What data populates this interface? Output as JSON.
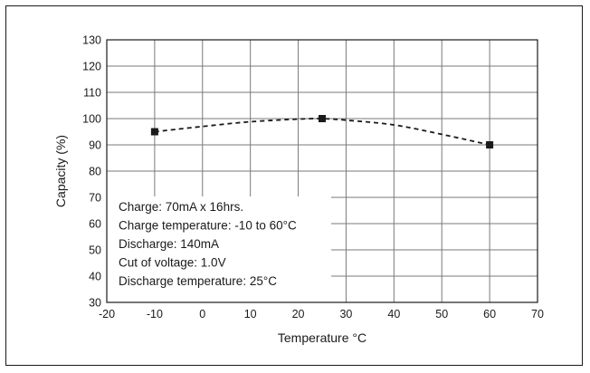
{
  "chart_data": {
    "type": "line",
    "title": "",
    "xlabel": "Temperature °C",
    "ylabel": "Capacity (%)",
    "xlim": [
      -20,
      70
    ],
    "ylim": [
      30,
      130
    ],
    "x_ticks": [
      -20,
      -10,
      0,
      10,
      20,
      30,
      40,
      50,
      60,
      70
    ],
    "y_ticks": [
      30,
      40,
      50,
      60,
      70,
      80,
      90,
      100,
      110,
      120,
      130
    ],
    "grid": true,
    "series": [
      {
        "marker_points": [
          {
            "x": -10,
            "y": 95
          },
          {
            "x": 25,
            "y": 100
          },
          {
            "x": 60,
            "y": 90
          }
        ],
        "curve": [
          {
            "x": -10,
            "y": 95
          },
          {
            "x": 0,
            "y": 97
          },
          {
            "x": 10,
            "y": 98.8
          },
          {
            "x": 20,
            "y": 99.8
          },
          {
            "x": 25,
            "y": 100
          },
          {
            "x": 30,
            "y": 99.4
          },
          {
            "x": 40,
            "y": 97.6
          },
          {
            "x": 50,
            "y": 94
          },
          {
            "x": 60,
            "y": 90
          }
        ],
        "line_style": "dashed",
        "color": "#1a1a1a"
      }
    ],
    "annotation": {
      "lines": [
        "Charge: 70mA x 16hrs.",
        "Charge temperature: -10 to 60°C",
        "Discharge: 140mA",
        "Cut of voltage: 1.0V",
        "Discharge temperature: 25°C"
      ],
      "placement": "bottom-left"
    }
  }
}
